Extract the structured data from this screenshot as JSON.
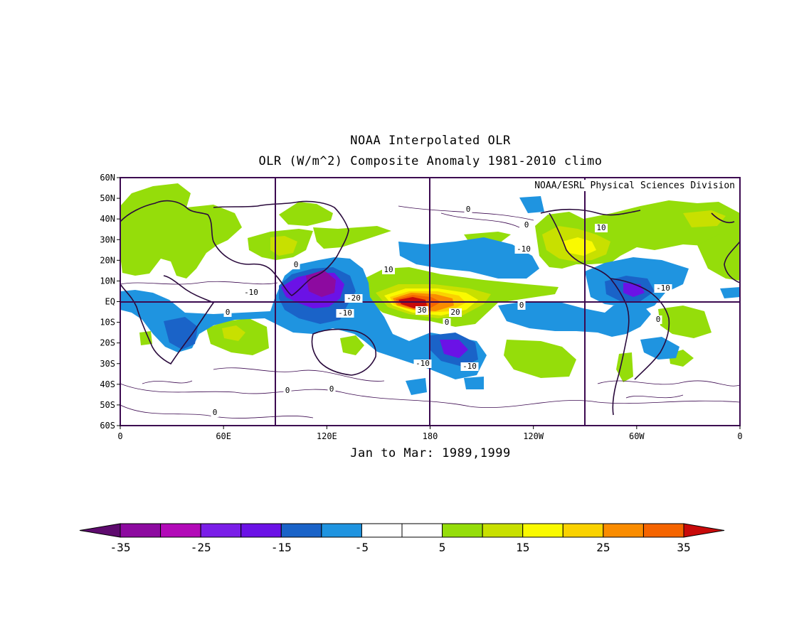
{
  "title_line1": "NOAA Interpolated OLR",
  "title_line2": "OLR (W/m^2) Composite Anomaly 1981-2010 climo",
  "credit": "NOAA/ESRL Physical Sciences Division",
  "subtitle": "Jan to Mar: 1989,1999",
  "map": {
    "lat_labels": [
      "60N",
      "50N",
      "40N",
      "30N",
      "20N",
      "10N",
      "EQ",
      "10S",
      "20S",
      "30S",
      "40S",
      "50S",
      "60S"
    ],
    "lon_labels": [
      "0",
      "60E",
      "120E",
      "180",
      "120W",
      "60W",
      "0"
    ],
    "contour_labels": [
      "-10",
      "-20",
      "-10",
      "-10",
      "10",
      "10",
      "30",
      "20",
      "0",
      "0",
      "0",
      "0",
      "0",
      "0",
      "-10",
      "-10",
      "-10",
      "0",
      "0",
      "0",
      "0"
    ],
    "anomaly_regions": [
      {
        "name": "central-pacific-positive",
        "lon": [
          150,
          210
        ],
        "lat": [
          -10,
          10
        ],
        "peak": 30
      },
      {
        "name": "maritime-continent-negative",
        "lon": [
          90,
          140
        ],
        "lat": [
          -15,
          15
        ],
        "peak": -25
      },
      {
        "name": "south-pacific-negative",
        "lon": [
          170,
          230
        ],
        "lat": [
          -35,
          -10
        ],
        "peak": -20
      },
      {
        "name": "south-america-negative",
        "lon": [
          280,
          320
        ],
        "lat": [
          -15,
          10
        ],
        "peak": -15
      },
      {
        "name": "north-america-positive",
        "lon": [
          235,
          285
        ],
        "lat": [
          20,
          40
        ],
        "peak": 15
      }
    ]
  },
  "colorbar": {
    "labels": [
      "-35",
      "-25",
      "-15",
      "-5",
      "5",
      "15",
      "25",
      "35"
    ],
    "colors": [
      "#5e0b6e",
      "#8d0aa0",
      "#b20ab8",
      "#7a1ee8",
      "#6b12e6",
      "#1a63c8",
      "#1f94e0",
      "#ffffff",
      "#ffffff",
      "#95dd0a",
      "#c8e000",
      "#fafa00",
      "#fad200",
      "#fa8c00",
      "#f56400",
      "#c80a0a"
    ]
  }
}
